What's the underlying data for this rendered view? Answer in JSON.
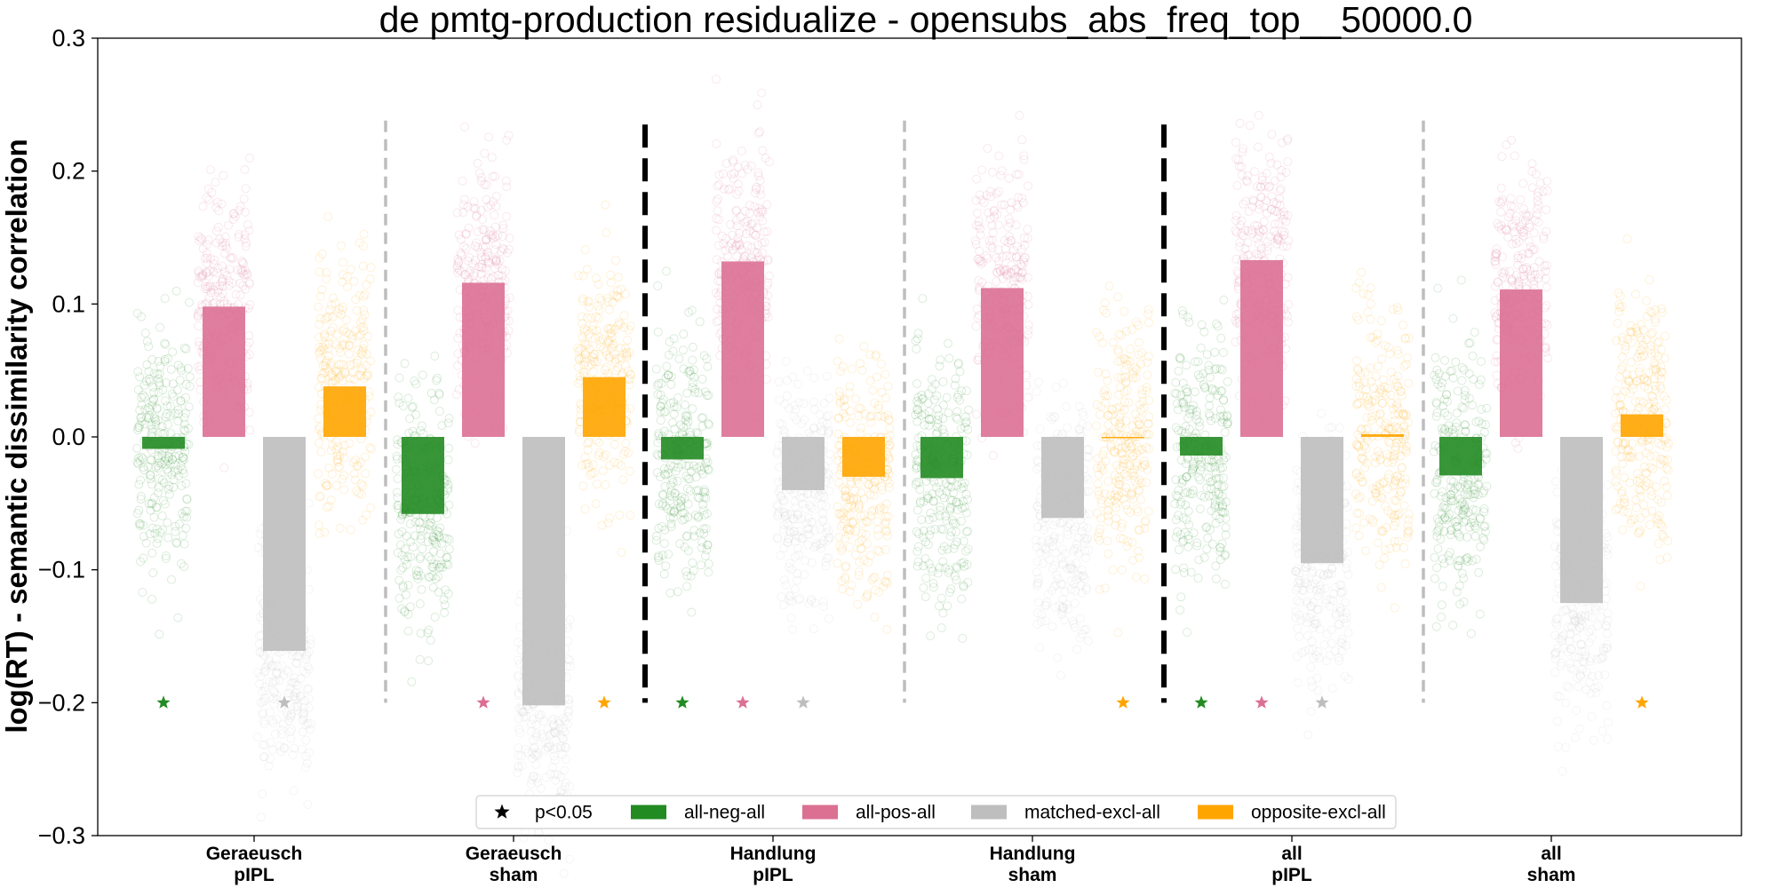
{
  "chart_data": {
    "type": "bar",
    "title": "de pmtg-production residualize - opensubs_abs_freq_top__50000.0",
    "ylabel": "log(RT) - semantic dissimilarity correlation",
    "xlabel": "",
    "ylim": [
      -0.3,
      0.3
    ],
    "yticks": [
      "0.3",
      "0.2",
      "0.1",
      "0.0",
      "−0.1",
      "−0.2",
      "−0.3"
    ],
    "categories": [
      {
        "line1": "Geraeusch",
        "line2": "pIPL"
      },
      {
        "line1": "Geraeusch",
        "line2": "sham"
      },
      {
        "line1": "Handlung",
        "line2": "pIPL"
      },
      {
        "line1": "Handlung",
        "line2": "sham"
      },
      {
        "line1": "all",
        "line2": "pIPL"
      },
      {
        "line1": "all",
        "line2": "sham"
      }
    ],
    "series": [
      {
        "name": "all-neg-all",
        "color": "#228b22",
        "values": [
          -0.009,
          -0.058,
          -0.017,
          -0.031,
          -0.014,
          -0.029
        ],
        "significant": [
          true,
          false,
          true,
          false,
          true,
          false
        ]
      },
      {
        "name": "all-pos-all",
        "color": "#db7093",
        "values": [
          0.098,
          0.116,
          0.132,
          0.112,
          0.133,
          0.111
        ],
        "significant": [
          false,
          true,
          true,
          false,
          true,
          false
        ]
      },
      {
        "name": "matched-excl-all",
        "color": "#bebebe",
        "values": [
          -0.161,
          -0.202,
          -0.04,
          -0.061,
          -0.095,
          -0.125
        ],
        "significant": [
          true,
          false,
          true,
          false,
          true,
          false
        ]
      },
      {
        "name": "opposite-excl-all",
        "color": "#ffa500",
        "values": [
          0.038,
          0.045,
          -0.03,
          -0.001,
          0.002,
          0.017
        ],
        "significant": [
          false,
          true,
          false,
          true,
          false,
          true
        ]
      }
    ],
    "significance_y": -0.2,
    "legend": {
      "position": "bottom-center",
      "star_label": "p<0.05",
      "entries": [
        "all-neg-all",
        "all-pos-all",
        "matched-excl-all",
        "opposite-excl-all"
      ]
    },
    "separators": [
      {
        "after_category": 0,
        "style": "grey-dashed"
      },
      {
        "after_category": 1,
        "style": "black-dashed"
      },
      {
        "after_category": 2,
        "style": "grey-dashed"
      },
      {
        "after_category": 3,
        "style": "black-dashed"
      },
      {
        "after_category": 4,
        "style": "grey-dashed"
      }
    ],
    "grid": false
  }
}
